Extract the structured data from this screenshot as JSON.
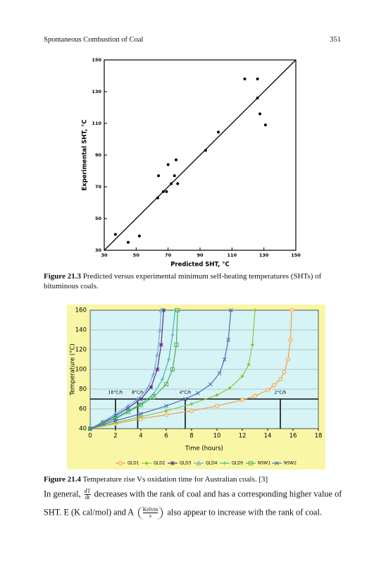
{
  "header": {
    "title": "Spontaneous Combustion of Coal",
    "page": "351"
  },
  "chart_data": [
    {
      "type": "scatter",
      "xlabel": "Predicted SHT, °C",
      "ylabel": "Experimental SHT, °C",
      "xlim": [
        30,
        150
      ],
      "ylim": [
        30,
        150
      ],
      "xticks": [
        30,
        50,
        70,
        90,
        110,
        130,
        150
      ],
      "yticks": [
        30,
        50,
        70,
        90,
        110,
        130,
        150
      ],
      "color": "#000000",
      "x": [
        37,
        45,
        52,
        63.5,
        64,
        67,
        69,
        70,
        72,
        74,
        75,
        76,
        93.5,
        101.5,
        118,
        126,
        126,
        127.5,
        131
      ],
      "values": [
        40,
        35,
        39,
        63,
        77,
        67,
        67,
        84,
        72,
        77,
        87,
        72,
        93,
        104.5,
        138,
        138,
        126,
        116,
        109
      ]
    },
    {
      "type": "line",
      "xlabel": "Time (hours)",
      "ylabel": "Temperature (°C)",
      "xlim": [
        0,
        18
      ],
      "ylim": [
        40,
        160
      ],
      "xticks": [
        0,
        2,
        4,
        6,
        8,
        10,
        12,
        14,
        16,
        18
      ],
      "yticks": [
        40,
        60,
        80,
        100,
        120,
        140,
        160
      ],
      "grid": true,
      "reference_lines": {
        "y": 70,
        "x": [
          2,
          3.75,
          7.5,
          15
        ],
        "labels": [
          "16°C/h",
          "8°C/h",
          "4°C/h",
          "2°C/h"
        ]
      },
      "series": [
        {
          "name": "QLD1",
          "color": "#f0a040",
          "marker": "circle",
          "x": [
            0,
            2,
            4,
            6,
            8,
            10,
            12,
            13,
            14,
            14.5,
            15,
            15.3,
            15.6,
            15.8,
            15.9
          ],
          "values": [
            40,
            45,
            50,
            54,
            58,
            63,
            69,
            73,
            79,
            84,
            90,
            97,
            110,
            130,
            160
          ]
        },
        {
          "name": "QLD2",
          "color": "#8dc63f",
          "marker": "diamond",
          "x": [
            0,
            2,
            4,
            6,
            8,
            10,
            11,
            12,
            12.5,
            12.8,
            13
          ],
          "values": [
            40,
            46,
            52,
            58,
            65,
            74,
            81,
            93,
            105,
            125,
            160
          ]
        },
        {
          "name": "QLD3",
          "color": "#5b2c83",
          "marker": "star",
          "x": [
            0,
            1,
            2,
            3,
            4,
            4.8,
            5.3,
            5.6,
            5.8
          ],
          "values": [
            40,
            46,
            53,
            61,
            70,
            82,
            100,
            125,
            160
          ]
        },
        {
          "name": "QLD4",
          "color": "#6fa8dc",
          "marker": "triangle",
          "x": [
            0,
            1,
            2,
            3,
            3.75,
            4.5,
            5,
            5.3,
            5.5,
            5.6
          ],
          "values": [
            40,
            47,
            55,
            63,
            70,
            80,
            95,
            115,
            140,
            160
          ]
        },
        {
          "name": "QLD5",
          "color": "#3cb8b0",
          "marker": "plus",
          "x": [
            0,
            1,
            2,
            3,
            4,
            5,
            5.7,
            6.2,
            6.5,
            6.7
          ],
          "values": [
            40,
            45,
            51,
            58,
            65,
            75,
            90,
            110,
            135,
            160
          ]
        },
        {
          "name": "NSW1",
          "color": "#4caf50",
          "marker": "square",
          "x": [
            0,
            1,
            2,
            3,
            4,
            5,
            6,
            6.5,
            6.8,
            6.9
          ],
          "values": [
            40,
            45,
            50,
            57,
            64,
            72,
            85,
            100,
            125,
            160
          ]
        },
        {
          "name": "NSW2",
          "color": "#4a6fb5",
          "marker": "x",
          "x": [
            0,
            2,
            4,
            6,
            7.5,
            8.5,
            9.5,
            10.2,
            10.6,
            10.9,
            11.1
          ],
          "values": [
            40,
            48,
            55,
            63,
            70,
            76,
            85,
            96,
            110,
            130,
            160
          ]
        }
      ]
    }
  ],
  "captions": [
    {
      "label": "Figure 21.3",
      "text": "Predicted versus experimental minimum self-heating temperatures (SHTs) of bituminous coals."
    },
    {
      "label": "Figure 21.4",
      "text": "Temperature rise Vs oxidation time for Australian coals. [3]"
    }
  ],
  "paragraph": {
    "before": "In general,",
    "frac_num": "dT",
    "frac_den": "dt",
    "line1_rest": "decreases with the rank of coal and has a corresponding higher value of",
    "line2_start": "SHT. E (K cal/mol) and A",
    "unit_num": "Kelvin",
    "unit_den": "s",
    "line2_end": "also appear to increase with the rank of coal."
  }
}
